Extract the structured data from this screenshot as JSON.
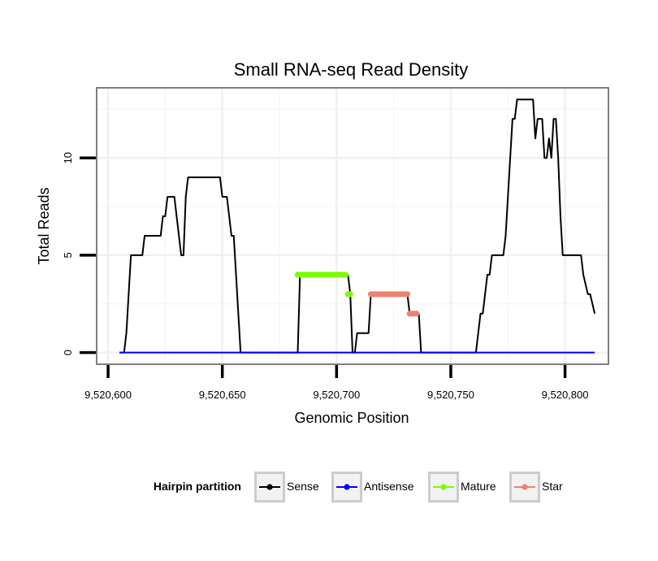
{
  "chart_data": {
    "type": "line",
    "title": "Small RNA-seq Read Density",
    "xlabel": "Genomic Position",
    "ylabel": "Total Reads",
    "xlim": [
      9520595,
      9520819
    ],
    "ylim": [
      -0.6,
      13.6
    ],
    "x_ticks": [
      9520600,
      9520650,
      9520700,
      9520750,
      9520800
    ],
    "x_tick_labels": [
      "9,520,600",
      "9,520,650",
      "9,520,700",
      "9,520,750",
      "9,520,800"
    ],
    "y_ticks": [
      0,
      5,
      10
    ],
    "y_tick_labels": [
      "0",
      "5",
      "10"
    ],
    "grid": true,
    "legend": {
      "title": "Hairpin partition",
      "placement": "bottom",
      "entries": [
        "Sense",
        "Antisense",
        "Mature",
        "Star"
      ]
    },
    "series": [
      {
        "name": "Sense",
        "color": "#000000",
        "style": "line",
        "x": [
          9520605,
          9520607,
          9520608,
          9520609,
          9520610,
          9520615,
          9520616,
          9520623,
          9520624,
          9520625,
          9520626,
          9520629,
          9520630,
          9520632,
          9520633,
          9520634,
          9520635,
          9520636,
          9520649,
          9520650,
          9520652,
          9520653,
          9520654,
          9520655,
          9520658,
          9520683,
          9520684,
          9520705,
          9520706,
          9520707,
          9520708,
          9520709,
          9520710,
          9520714,
          9520715,
          9520716,
          9520731,
          9520732,
          9520736,
          9520737,
          9520761,
          9520763,
          9520764,
          9520766,
          9520767,
          9520768,
          9520769,
          9520770,
          9520773,
          9520774,
          9520775,
          9520777,
          9520778,
          9520779,
          9520780,
          9520781,
          9520782,
          9520786,
          9520787,
          9520788,
          9520790,
          9520791,
          9520792,
          9520793,
          9520794,
          9520795,
          9520796,
          9520797,
          9520798,
          9520799,
          9520800,
          9520801,
          9520807,
          9520808,
          9520810,
          9520811,
          9520813
        ],
        "values": [
          0,
          0,
          1,
          3,
          5,
          5,
          6,
          6,
          7,
          7,
          8,
          8,
          7,
          5,
          5,
          8,
          9,
          9,
          9,
          8,
          8,
          7,
          6,
          6,
          0,
          0,
          4,
          4,
          3,
          0,
          0,
          1,
          1,
          1,
          3,
          3,
          3,
          2,
          2,
          0,
          0,
          2,
          2,
          4,
          4,
          5,
          5,
          5,
          5,
          6,
          8,
          12,
          12,
          13,
          13,
          13,
          13,
          13,
          11,
          12,
          12,
          10,
          10,
          11,
          10,
          12,
          12,
          10,
          7,
          5,
          5,
          5,
          5,
          4,
          3,
          3,
          2
        ]
      },
      {
        "name": "Antisense",
        "color": "#0000ff",
        "style": "line",
        "x": [
          9520605,
          9520813
        ],
        "values": [
          0,
          0
        ]
      },
      {
        "name": "Mature",
        "color": "#7cfc00",
        "style": "points",
        "x": [
          9520683,
          9520684,
          9520685,
          9520686,
          9520687,
          9520688,
          9520689,
          9520690,
          9520691,
          9520692,
          9520693,
          9520694,
          9520695,
          9520696,
          9520697,
          9520698,
          9520699,
          9520700,
          9520701,
          9520702,
          9520703,
          9520704,
          9520705,
          9520706
        ],
        "values": [
          4,
          4,
          4,
          4,
          4,
          4,
          4,
          4,
          4,
          4,
          4,
          4,
          4,
          4,
          4,
          4,
          4,
          4,
          4,
          4,
          4,
          4,
          3,
          3
        ]
      },
      {
        "name": "Star",
        "color": "#f08070",
        "style": "points",
        "x": [
          9520715,
          9520716,
          9520717,
          9520718,
          9520719,
          9520720,
          9520721,
          9520722,
          9520723,
          9520724,
          9520725,
          9520726,
          9520727,
          9520728,
          9520729,
          9520730,
          9520731,
          9520732,
          9520733,
          9520734,
          9520735
        ],
        "values": [
          3,
          3,
          3,
          3,
          3,
          3,
          3,
          3,
          3,
          3,
          3,
          3,
          3,
          3,
          3,
          3,
          3,
          2,
          2,
          2,
          2
        ]
      }
    ]
  }
}
